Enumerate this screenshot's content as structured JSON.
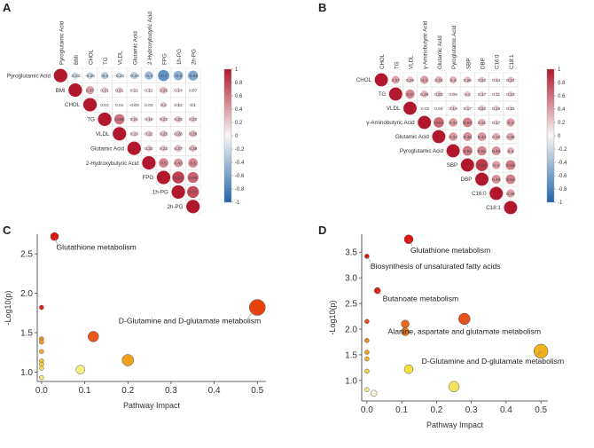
{
  "panel_labels": [
    "A",
    "B",
    "C",
    "D"
  ],
  "chart_data": [
    {
      "type": "heatmap",
      "panel": "A",
      "variables": [
        "Pyroglutamic Acid",
        "BMI",
        "CHOL",
        "TG",
        "VLDL",
        "Glutamic Acid",
        "2-Hydroxybutyric Acid",
        "FPG",
        "1h-PG",
        "2h-PG"
      ],
      "upper_triangle": [
        [
          -0.22,
          -0.25,
          -0.3,
          -0.22,
          -0.29,
          -0.4,
          -0.7,
          -0.5,
          -0.55
        ],
        [
          0.37,
          0.21,
          0.21,
          0.12,
          0.12,
          0.26,
          0.14,
          0.07
        ],
        [
          0.02,
          0.01,
          -0.09,
          0.03,
          0.2,
          0.12,
          0.1
        ],
        [
          0.59,
          0.21,
          0.19,
          0.22,
          0.25,
          0.22
        ],
        [
          0.19,
          0.22,
          0.25,
          0.26,
          0.28
        ],
        [
          0.22,
          0.22,
          0.27,
          0.28
        ],
        [
          0.5,
          0.43,
          0.5
        ],
        [
          0.81,
          0.66
        ],
        [
          0.77
        ]
      ],
      "cell_labels": [
        [
          "-0.22",
          "-0.25",
          "-0.3",
          "-0.22",
          "-0.29",
          "-0.4",
          "-0.7",
          "-0.5",
          "-0.55"
        ],
        [
          "0.37",
          "0.21",
          "0.21",
          "0.12",
          "0.12",
          "0.26",
          "0.14",
          "0.07"
        ],
        [
          "0.02",
          "0.01",
          "-0.09",
          "0.03",
          "0.2",
          "0.12",
          "0.1"
        ],
        [
          "0.59",
          "0.21",
          "0.19",
          "0.22",
          "0.25",
          "0.22"
        ],
        [
          "0.19",
          "0.22",
          "0.25",
          "0.26",
          "0.28"
        ],
        [
          "0.22",
          "0.22",
          "0.27",
          "0.28"
        ],
        [
          "0.5",
          "0.43",
          "0.5"
        ],
        [
          "0.81",
          "0.66"
        ],
        [
          "0.77"
        ]
      ],
      "colorbar_ticks": [
        "1",
        "0.8",
        "0.6",
        "0.4",
        "0.2",
        "0",
        "-0.2",
        "-0.4",
        "-0.6",
        "-0.8",
        "-1"
      ],
      "colors": {
        "positive": "#b2182b",
        "neutral": "#f7f7f7",
        "negative": "#2166ac"
      }
    },
    {
      "type": "heatmap",
      "panel": "B",
      "variables": [
        "CHOL",
        "TG",
        "VLDL",
        "γ-Aminobutyric Acid",
        "Glutamic Acid",
        "Pyroglutamic Acid",
        "SBP",
        "DBP",
        "C16:0",
        "C18:1"
      ],
      "upper_triangle": [
        [
          0.37,
          0.26,
          0.4,
          0.31,
          0.3,
          0.26,
          0.22,
          0.14,
          0.24
        ],
        [
          0.5,
          0.29,
          0.23,
          0.09,
          0.2,
          0.17,
          0.11,
          0.19
        ],
        [
          -0.02,
          0.04,
          0.19,
          0.17,
          0.22,
          0.19,
          0.15
        ],
        [
          0.63,
          0.42,
          0.53,
          0.31,
          0.17,
          0.4
        ],
        [
          0.42,
          0.46,
          0.44,
          0.32,
          0.36
        ],
        [
          0.56,
          0.51,
          0.46,
          0.3
        ],
        [
          0.86,
          0.4,
          0.55
        ],
        [
          0.46,
          0.54
        ],
        [
          0.39
        ]
      ],
      "cell_labels": [
        [
          "0.37",
          "0.26",
          "0.4",
          "0.31",
          "0.3",
          "0.26",
          "0.22",
          "0.14",
          "0.24"
        ],
        [
          "0.5",
          "0.29",
          "0.23",
          "0.09",
          "0.2",
          "0.17",
          "0.11",
          "0.19"
        ],
        [
          "-0.02",
          "0.04",
          "0.19",
          "0.17",
          "0.22",
          "0.19",
          "0.15"
        ],
        [
          "0.63",
          "0.42",
          "0.53",
          "0.31",
          "0.17",
          "0.4"
        ],
        [
          "0.42",
          "0.46",
          "0.44",
          "0.32",
          "0.36"
        ],
        [
          "0.56",
          "0.51",
          "0.46",
          "0.3"
        ],
        [
          "0.86",
          "0.4",
          "0.55"
        ],
        [
          "0.46",
          "0.54"
        ],
        [
          "0.39"
        ]
      ],
      "colorbar_ticks": [
        "1",
        "0.8",
        "0.6",
        "0.4",
        "0.2",
        "0",
        "-0.2",
        "-0.4",
        "-0.6",
        "-0.8",
        "-1"
      ],
      "colors": {
        "positive": "#b2182b",
        "neutral": "#f7f7f7",
        "negative": "#2166ac"
      }
    },
    {
      "type": "scatter",
      "panel": "C",
      "xlabel": "Pathway Impact",
      "ylabel": "-Log10(p)",
      "xlim": [
        -0.01,
        0.52
      ],
      "ylim": [
        0.88,
        2.75
      ],
      "xticks": [
        "0.0",
        "0.1",
        "0.2",
        "0.3",
        "0.4",
        "0.5"
      ],
      "yticks": [
        "1.0",
        "1.5",
        "2.0",
        "2.5"
      ],
      "points": [
        {
          "x": 0.03,
          "y": 2.72,
          "size": 4.5,
          "color": "#e0120c",
          "label": "Glutathione metabolism"
        },
        {
          "x": 0.5,
          "y": 1.82,
          "size": 9,
          "color": "#e8430e",
          "label": "D-Glutamine and D-glutamate metabolism"
        },
        {
          "x": 0.0,
          "y": 1.82,
          "size": 2.5,
          "color": "#e21b10",
          "label": ""
        },
        {
          "x": 0.12,
          "y": 1.45,
          "size": 6,
          "color": "#e8591a",
          "label": ""
        },
        {
          "x": 0.2,
          "y": 1.15,
          "size": 6.5,
          "color": "#f0a01c",
          "label": ""
        },
        {
          "x": 0.09,
          "y": 1.03,
          "size": 5,
          "color": "#f7ee80",
          "label": ""
        },
        {
          "x": 0.0,
          "y": 1.42,
          "size": 2.5,
          "color": "#ee8a1c",
          "label": ""
        },
        {
          "x": 0.0,
          "y": 1.38,
          "size": 2.5,
          "color": "#f0a022",
          "label": ""
        },
        {
          "x": 0.0,
          "y": 1.26,
          "size": 2.5,
          "color": "#f2b22a",
          "label": ""
        },
        {
          "x": 0.0,
          "y": 1.14,
          "size": 2.5,
          "color": "#f4c434",
          "label": ""
        },
        {
          "x": 0.0,
          "y": 1.1,
          "size": 2.5,
          "color": "#f5d040",
          "label": ""
        },
        {
          "x": 0.0,
          "y": 1.05,
          "size": 2.5,
          "color": "#f6dc55",
          "label": ""
        },
        {
          "x": 0.0,
          "y": 0.93,
          "size": 2.5,
          "color": "#f8ea80",
          "label": ""
        }
      ]
    },
    {
      "type": "scatter",
      "panel": "D",
      "xlabel": "Pathway Impact",
      "ylabel": "-Log10(p)",
      "xlim": [
        -0.015,
        0.52
      ],
      "ylim": [
        0.6,
        3.85
      ],
      "xticks": [
        "0.0",
        "0.1",
        "0.2",
        "0.3",
        "0.4",
        "0.5"
      ],
      "yticks": [
        "1.0",
        "1.5",
        "2.0",
        "2.5",
        "3.0",
        "3.5"
      ],
      "points": [
        {
          "x": 0.12,
          "y": 3.75,
          "size": 5,
          "color": "#e0120c",
          "label": "Glutathione metabolism"
        },
        {
          "x": 0.0,
          "y": 3.42,
          "size": 2.5,
          "color": "#d8100c",
          "label": "Biosynthesis of unsaturated fatty acids"
        },
        {
          "x": 0.03,
          "y": 2.75,
          "size": 3.5,
          "color": "#e2200e",
          "label": "Butanoate metabolism"
        },
        {
          "x": 0.28,
          "y": 2.2,
          "size": 6.5,
          "color": "#e8501a",
          "label": "Alanine, aspartate and glutamate metabolism"
        },
        {
          "x": 0.5,
          "y": 1.57,
          "size": 8,
          "color": "#f0b020",
          "label": "D-Glutamine and D-glutamate metabolism"
        },
        {
          "x": 0.11,
          "y": 2.1,
          "size": 4.5,
          "color": "#ea6a1a",
          "label": ""
        },
        {
          "x": 0.11,
          "y": 1.95,
          "size": 4.5,
          "color": "#ec7a1c",
          "label": ""
        },
        {
          "x": 0.12,
          "y": 1.22,
          "size": 5,
          "color": "#f6e040",
          "label": ""
        },
        {
          "x": 0.25,
          "y": 0.88,
          "size": 6,
          "color": "#f6e460",
          "label": ""
        },
        {
          "x": 0.0,
          "y": 2.15,
          "size": 2.5,
          "color": "#e8501a",
          "label": ""
        },
        {
          "x": 0.0,
          "y": 1.78,
          "size": 2.5,
          "color": "#ee8a1c",
          "label": ""
        },
        {
          "x": 0.0,
          "y": 1.55,
          "size": 2.5,
          "color": "#f0a022",
          "label": ""
        },
        {
          "x": 0.0,
          "y": 1.42,
          "size": 2.5,
          "color": "#f2b22a",
          "label": ""
        },
        {
          "x": 0.0,
          "y": 1.18,
          "size": 2.5,
          "color": "#f5d040",
          "label": ""
        },
        {
          "x": 0.0,
          "y": 0.82,
          "size": 2.5,
          "color": "#f8ee88",
          "label": ""
        },
        {
          "x": 0.02,
          "y": 0.75,
          "size": 3.5,
          "color": "#fbf6e0",
          "label": ""
        }
      ]
    }
  ]
}
